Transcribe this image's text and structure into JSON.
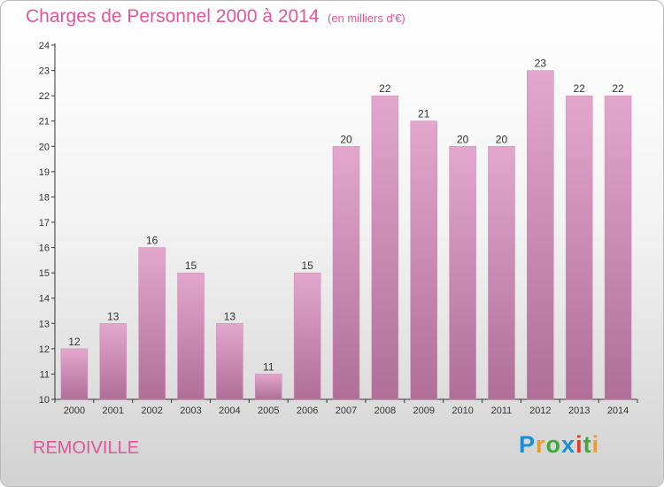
{
  "header": {
    "title": "Charges de Personnel 2000 à 2014",
    "subtitle": "(en milliers d'€)"
  },
  "footer": {
    "location": "REMOIVILLE",
    "logo": {
      "letters": [
        "P",
        "r",
        "o",
        "x",
        "i",
        "t",
        "i"
      ],
      "colors": [
        "#1b8fd6",
        "#f29a1e",
        "#43a935",
        "#1b8fd6",
        "#e23c2a",
        "#43a935",
        "#f29a1e"
      ]
    }
  },
  "colors": {
    "title": "#e0559c",
    "bar_top": "#e3a7cd",
    "bar_bottom": "#b06e99"
  },
  "chart_data": {
    "type": "bar",
    "title": "Charges de Personnel 2000 à 2014",
    "subtitle": "(en milliers d'€)",
    "categories": [
      "2000",
      "2001",
      "2002",
      "2003",
      "2004",
      "2005",
      "2006",
      "2007",
      "2008",
      "2009",
      "2010",
      "2011",
      "2012",
      "2013",
      "2014"
    ],
    "values": [
      12,
      13,
      16,
      15,
      13,
      11,
      15,
      20,
      22,
      21,
      20,
      20,
      23,
      22,
      22
    ],
    "value_labels": [
      "12",
      "13",
      "16",
      "15",
      "13",
      "11",
      "15",
      "20",
      "22",
      "21",
      "20",
      "20",
      "23",
      "22",
      "22"
    ],
    "yticks": [
      "10",
      "11",
      "12",
      "13",
      "14",
      "15",
      "16",
      "17",
      "18",
      "19",
      "20",
      "21",
      "22",
      "23",
      "24"
    ],
    "ylim": [
      10,
      24
    ],
    "xlabel": "",
    "ylabel": "",
    "grid": false,
    "legend": "none"
  }
}
